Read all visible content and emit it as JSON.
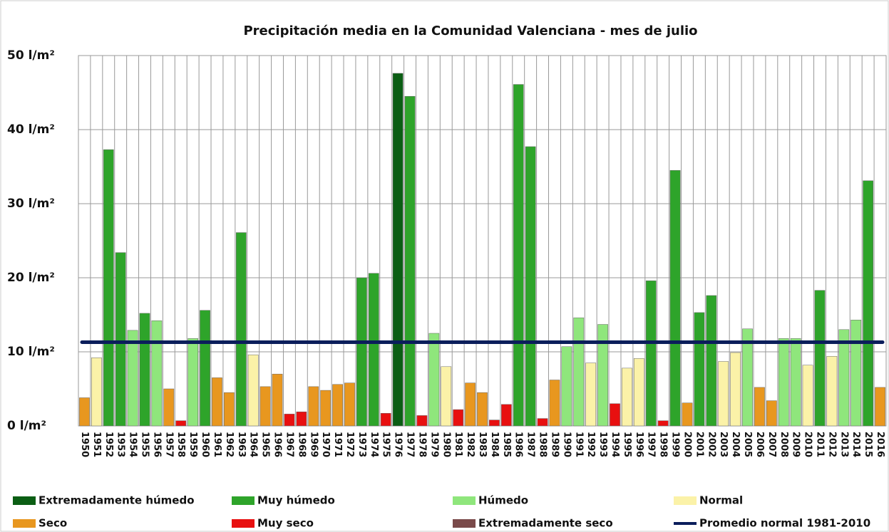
{
  "chart_data": {
    "type": "bar",
    "title": "Precipitación media en la Comunidad Valenciana - mes de julio",
    "categories": [
      "1950",
      "1951",
      "1952",
      "1953",
      "1954",
      "1955",
      "1956",
      "1957",
      "1958",
      "1959",
      "1960",
      "1961",
      "1962",
      "1963",
      "1964",
      "1965",
      "1966",
      "1967",
      "1968",
      "1969",
      "1970",
      "1971",
      "1972",
      "1973",
      "1974",
      "1975",
      "1976",
      "1977",
      "1978",
      "1979",
      "1980",
      "1981",
      "1982",
      "1983",
      "1984",
      "1985",
      "1986",
      "1987",
      "1988",
      "1989",
      "1990",
      "1991",
      "1992",
      "1993",
      "1994",
      "1995",
      "1996",
      "1997",
      "1998",
      "1999",
      "2000",
      "2001",
      "2002",
      "2003",
      "2004",
      "2005",
      "2006",
      "2007",
      "2008",
      "2009",
      "2010",
      "2011",
      "2012",
      "2013",
      "2014",
      "2015",
      "2016"
    ],
    "series": [
      {
        "name": "Extremadamente húmedo",
        "color": "#0b5e14",
        "values": [
          null,
          null,
          null,
          null,
          null,
          null,
          null,
          null,
          null,
          null,
          null,
          null,
          null,
          null,
          null,
          null,
          null,
          null,
          null,
          null,
          null,
          null,
          null,
          null,
          null,
          null,
          47.6,
          null,
          null,
          null,
          null,
          null,
          null,
          null,
          null,
          null,
          null,
          null,
          null,
          null,
          null,
          null,
          null,
          null,
          null,
          null,
          null,
          null,
          null,
          null,
          null,
          null,
          null,
          null,
          null,
          null,
          null,
          null,
          null,
          null,
          null,
          null,
          null,
          null,
          null,
          null,
          null
        ]
      },
      {
        "name": "Muy húmedo",
        "color": "#2ea42a",
        "values": [
          null,
          null,
          37.3,
          23.4,
          null,
          15.2,
          null,
          null,
          null,
          null,
          15.6,
          null,
          null,
          26.1,
          null,
          null,
          null,
          null,
          null,
          null,
          null,
          null,
          null,
          20.0,
          20.6,
          null,
          null,
          44.5,
          null,
          null,
          null,
          null,
          null,
          null,
          null,
          null,
          46.1,
          37.7,
          null,
          null,
          null,
          null,
          null,
          null,
          null,
          null,
          null,
          19.6,
          null,
          34.5,
          null,
          15.3,
          17.6,
          null,
          null,
          null,
          null,
          null,
          null,
          null,
          null,
          18.3,
          null,
          null,
          null,
          33.1,
          null
        ]
      },
      {
        "name": "Húmedo",
        "color": "#8fe67c",
        "values": [
          null,
          null,
          null,
          null,
          12.9,
          null,
          14.2,
          null,
          null,
          11.8,
          null,
          null,
          null,
          null,
          null,
          null,
          null,
          null,
          null,
          null,
          null,
          null,
          null,
          null,
          null,
          null,
          null,
          null,
          null,
          12.5,
          null,
          null,
          null,
          null,
          null,
          null,
          null,
          null,
          null,
          null,
          10.7,
          14.6,
          null,
          13.7,
          null,
          null,
          null,
          null,
          null,
          null,
          null,
          null,
          null,
          null,
          null,
          13.1,
          null,
          null,
          11.8,
          11.8,
          null,
          null,
          null,
          13.0,
          14.3,
          null,
          null
        ]
      },
      {
        "name": "Normal",
        "color": "#fbf2a8",
        "values": [
          null,
          9.2,
          null,
          null,
          null,
          null,
          null,
          null,
          null,
          null,
          null,
          null,
          null,
          null,
          9.6,
          null,
          null,
          null,
          null,
          null,
          null,
          null,
          null,
          null,
          null,
          null,
          null,
          null,
          null,
          null,
          8.0,
          null,
          null,
          null,
          null,
          null,
          null,
          null,
          null,
          null,
          null,
          null,
          8.5,
          null,
          null,
          7.8,
          9.1,
          null,
          null,
          null,
          null,
          null,
          null,
          8.7,
          9.9,
          null,
          null,
          null,
          null,
          null,
          8.2,
          null,
          9.4,
          null,
          null,
          null,
          null
        ]
      },
      {
        "name": "Seco",
        "color": "#e8971f",
        "values": [
          3.8,
          null,
          null,
          null,
          null,
          null,
          null,
          5.0,
          null,
          null,
          null,
          6.5,
          4.5,
          null,
          null,
          5.3,
          7.0,
          null,
          null,
          5.3,
          4.8,
          5.6,
          5.8,
          null,
          null,
          null,
          null,
          null,
          null,
          null,
          null,
          null,
          5.8,
          4.5,
          null,
          null,
          null,
          null,
          null,
          6.2,
          null,
          null,
          null,
          null,
          null,
          null,
          null,
          null,
          null,
          null,
          3.1,
          null,
          null,
          null,
          null,
          null,
          5.2,
          3.4,
          null,
          null,
          null,
          null,
          null,
          null,
          null,
          null,
          5.2
        ]
      },
      {
        "name": "Muy seco",
        "color": "#e81010",
        "values": [
          null,
          null,
          null,
          null,
          null,
          null,
          null,
          null,
          0.7,
          null,
          null,
          null,
          null,
          null,
          null,
          null,
          null,
          1.6,
          1.9,
          null,
          null,
          null,
          null,
          null,
          null,
          1.7,
          null,
          null,
          1.4,
          null,
          null,
          2.2,
          null,
          null,
          0.8,
          2.9,
          null,
          null,
          1.0,
          null,
          null,
          null,
          null,
          null,
          3.0,
          null,
          null,
          null,
          0.7,
          null,
          null,
          null,
          null,
          null,
          null,
          null,
          null,
          null,
          null,
          null,
          null,
          null,
          null,
          null,
          null,
          null,
          null
        ]
      },
      {
        "name": "Extremadamente seco",
        "color": "#7a4a4a",
        "values": [
          null,
          null,
          null,
          null,
          null,
          null,
          null,
          null,
          null,
          null,
          null,
          null,
          null,
          null,
          null,
          null,
          null,
          null,
          null,
          null,
          null,
          null,
          null,
          null,
          null,
          null,
          null,
          null,
          null,
          null,
          null,
          null,
          null,
          null,
          null,
          null,
          null,
          null,
          null,
          null,
          null,
          null,
          null,
          null,
          null,
          null,
          null,
          null,
          null,
          null,
          null,
          null,
          null,
          null,
          null,
          null,
          null,
          null,
          null,
          null,
          null,
          null,
          null,
          null,
          null,
          null,
          null
        ]
      }
    ],
    "reference_line": {
      "name": "Promedio normal 1981-2010",
      "value": 11.3,
      "color": "#0b1e5b"
    },
    "ylim": [
      0,
      50
    ],
    "yticks": [
      {
        "value": 0,
        "label": "0 l/m²"
      },
      {
        "value": 10,
        "label": "10 l/m²"
      },
      {
        "value": 20,
        "label": "20 l/m²"
      },
      {
        "value": 30,
        "label": "30 l/m²"
      },
      {
        "value": 40,
        "label": "40 l/m²"
      },
      {
        "value": 50,
        "label": "50 l/m²"
      }
    ],
    "grid": true
  }
}
